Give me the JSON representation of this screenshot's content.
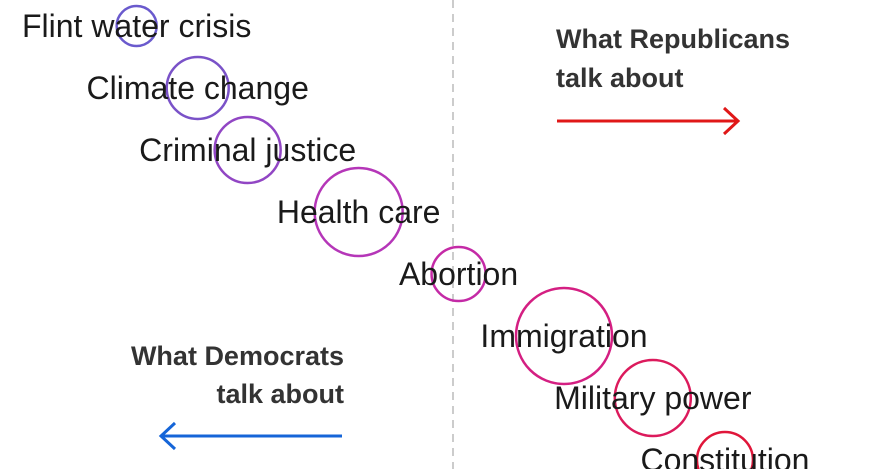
{
  "chart_data": {
    "type": "scatter",
    "title": "",
    "xlabel": "",
    "ylabel": "",
    "topics": [
      {
        "label": "Flint water crisis",
        "x": -57,
        "size": 1.0,
        "color": "#6a5acd"
      },
      {
        "label": "Climate change",
        "x": -46,
        "size": 1.55,
        "color": "#7a52c8"
      },
      {
        "label": "Criminal justice",
        "x": -37,
        "size": 1.65,
        "color": "#9146c4"
      },
      {
        "label": "Health care",
        "x": -17,
        "size": 2.2,
        "color": "#b536b8"
      },
      {
        "label": "Abortion",
        "x": 1,
        "size": 1.35,
        "color": "#c42aa6"
      },
      {
        "label": "Immigration",
        "x": 20,
        "size": 2.4,
        "color": "#d41f82"
      },
      {
        "label": "Military power",
        "x": 36,
        "size": 1.9,
        "color": "#dc1a5c"
      },
      {
        "label": "Constitution",
        "x": 49,
        "size": 1.4,
        "color": "#e0163a"
      }
    ]
  },
  "annotations": {
    "republicans": {
      "line1": "What Republicans",
      "line2": "talk about",
      "color": "#e01818"
    },
    "democrats": {
      "line1": "What Democrats",
      "line2": "talk about",
      "color": "#1565d8"
    }
  },
  "divider_color": "#cccccc"
}
